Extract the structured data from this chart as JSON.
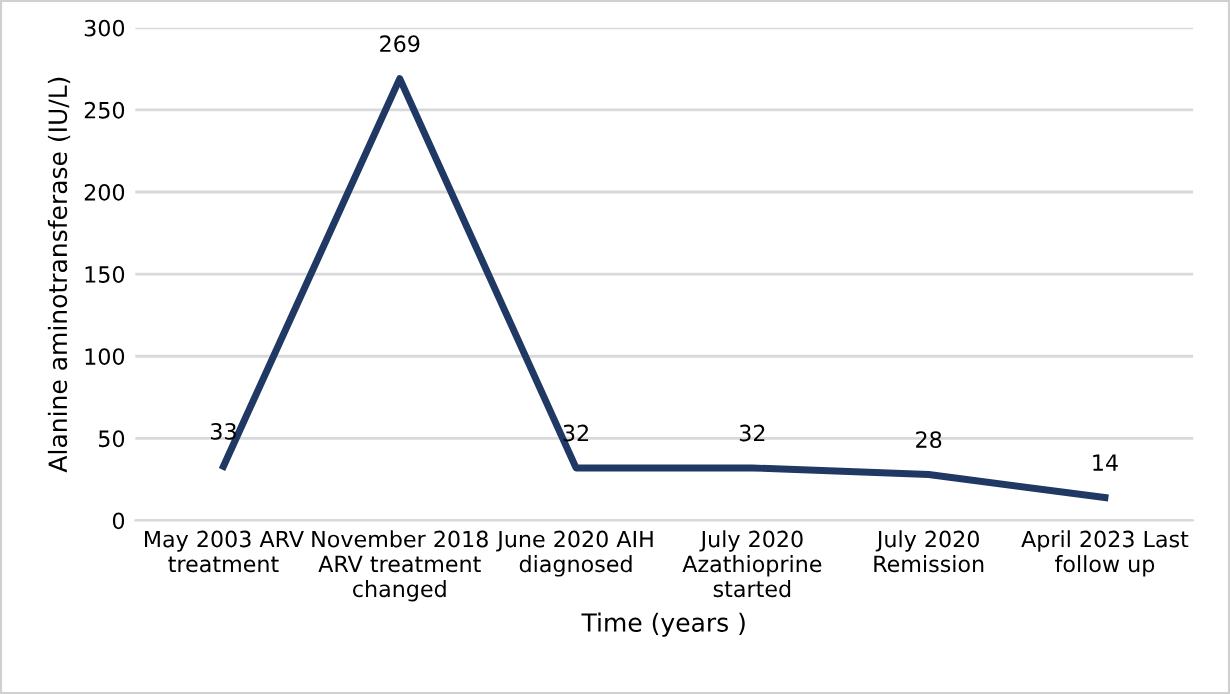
{
  "chart_data": {
    "type": "line",
    "xlabel": "Time (years )",
    "ylabel": "Alanine aminotransferase (IU/L)",
    "categories": [
      "May 2003 ARV\ntreatment",
      "November 2018\nARV treatment\nchanged",
      "June 2020 AIH\ndiagnosed",
      "July 2020\nAzathioprine\nstarted",
      "July 2020\nRemission",
      "April 2023 Last\nfollow up"
    ],
    "series": [
      {
        "color": "#203864",
        "values": [
          33,
          269,
          32,
          32,
          28,
          14
        ]
      }
    ],
    "ylim": [
      0,
      300
    ],
    "yticks": [
      0,
      50,
      100,
      150,
      200,
      250,
      300
    ],
    "grid": "y",
    "data_labels": true,
    "marker": "none",
    "line_style": "solid"
  }
}
